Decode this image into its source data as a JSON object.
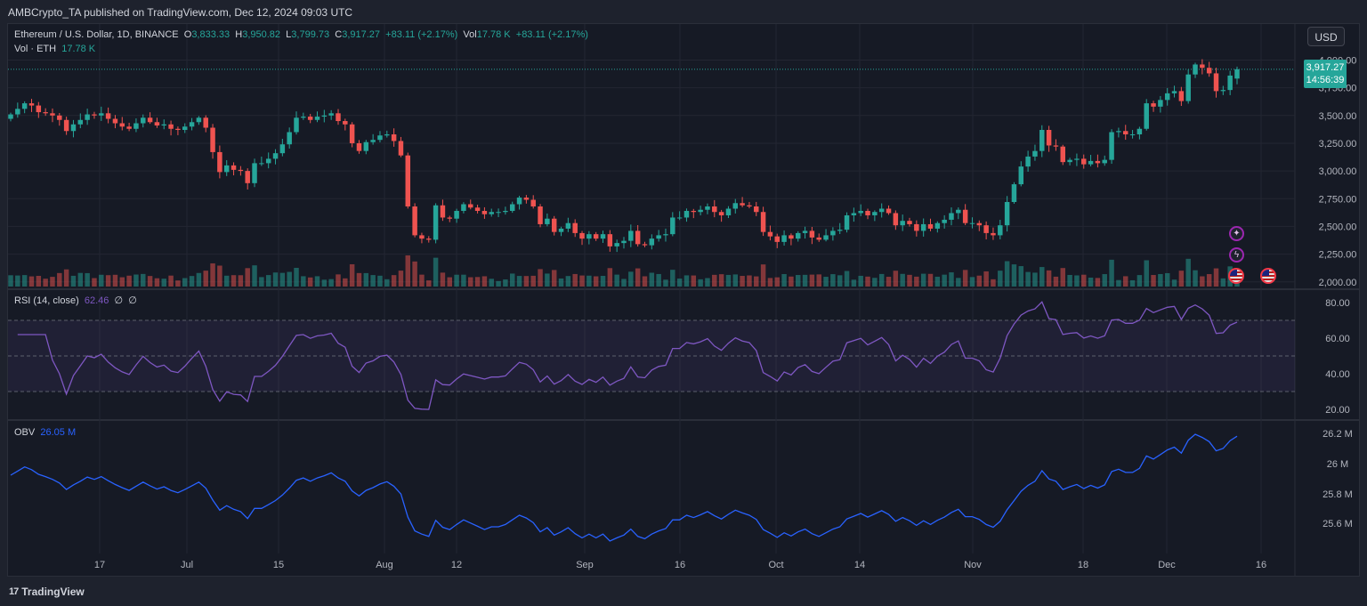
{
  "header": {
    "published": "AMBCrypto_TA published on TradingView.com, Dec 12, 2024 09:03 UTC"
  },
  "legend": {
    "symbol": "Ethereum / U.S. Dollar, 1D, BINANCE",
    "open_label": "O",
    "open": "3,833.33",
    "high_label": "H",
    "high": "3,950.82",
    "low_label": "L",
    "low": "3,799.73",
    "close_label": "C",
    "close": "3,917.27",
    "change": "+83.11 (+2.17%)",
    "vol_label": "Vol",
    "vol": "17.78 K",
    "vol_change": "+83.11 (+2.17%)",
    "vol_sub_label": "Vol · ETH",
    "vol_sub_value": "17.78 K",
    "rsi_label": "RSI (14, close)",
    "rsi_value": "62.46",
    "rsi_extra1": "∅",
    "rsi_extra2": "∅",
    "obv_label": "OBV",
    "obv_value": "26.05 M"
  },
  "currency_button": "USD",
  "price_badge": {
    "price": "3,917.27",
    "countdown": "14:56:39"
  },
  "footer": {
    "brand": "TradingView",
    "brand_mark": "17"
  },
  "colors": {
    "up": "#26a69a",
    "down": "#ef5350",
    "rsi": "#7e57c2",
    "obv": "#2962ff",
    "background": "#161a25",
    "grid": "#232632",
    "text": "#b2b5be"
  },
  "icons": [
    "event-star-icon",
    "event-bolt-icon",
    "us-flag-icon",
    "us-flag-icon"
  ],
  "chart_data": {
    "type": "candlestick",
    "x_tick_labels": [
      "17",
      "Jul",
      "15",
      "Aug",
      "12",
      "Sep",
      "16",
      "Oct",
      "14",
      "Nov",
      "18",
      "Dec",
      "16"
    ],
    "price_axis": {
      "ticks": [
        2000,
        2250,
        2500,
        2750,
        3000,
        3250,
        3500,
        3750,
        4000
      ],
      "tick_labels": [
        "2,000.00",
        "2,250.00",
        "2,500.00",
        "2,750.00",
        "3,000.00",
        "3,250.00",
        "3,500.00",
        "3,750.00",
        "4,000.00"
      ],
      "ylim": [
        1990,
        4060
      ]
    },
    "rsi_axis": {
      "ticks": [
        20,
        40,
        60,
        80
      ],
      "tick_labels": [
        "20.00",
        "40.00",
        "60.00",
        "80.00"
      ],
      "band": [
        30,
        70
      ],
      "mid": 50
    },
    "obv_axis": {
      "ticks": [
        25.6,
        25.8,
        26.0,
        26.2
      ],
      "tick_labels": [
        "25.6 M",
        "25.8 M",
        "26 M",
        "26.2 M"
      ]
    },
    "close": [
      3510,
      3560,
      3610,
      3590,
      3530,
      3520,
      3500,
      3460,
      3360,
      3420,
      3460,
      3510,
      3500,
      3520,
      3470,
      3430,
      3400,
      3380,
      3430,
      3480,
      3440,
      3410,
      3420,
      3380,
      3370,
      3400,
      3440,
      3480,
      3390,
      3170,
      2990,
      3050,
      3010,
      3000,
      2890,
      3070,
      3070,
      3110,
      3160,
      3240,
      3350,
      3480,
      3490,
      3460,
      3490,
      3500,
      3520,
      3450,
      3420,
      3250,
      3180,
      3260,
      3280,
      3320,
      3330,
      3270,
      3140,
      2680,
      2420,
      2390,
      2380,
      2690,
      2580,
      2570,
      2640,
      2700,
      2670,
      2640,
      2610,
      2630,
      2630,
      2640,
      2700,
      2760,
      2740,
      2680,
      2520,
      2570,
      2450,
      2480,
      2530,
      2440,
      2390,
      2430,
      2390,
      2430,
      2320,
      2350,
      2370,
      2460,
      2340,
      2330,
      2390,
      2420,
      2430,
      2580,
      2580,
      2640,
      2630,
      2650,
      2680,
      2630,
      2600,
      2660,
      2710,
      2690,
      2680,
      2630,
      2450,
      2410,
      2360,
      2420,
      2390,
      2440,
      2460,
      2400,
      2380,
      2420,
      2460,
      2470,
      2600,
      2620,
      2640,
      2600,
      2630,
      2660,
      2620,
      2510,
      2550,
      2520,
      2460,
      2520,
      2480,
      2530,
      2560,
      2620,
      2650,
      2530,
      2530,
      2510,
      2440,
      2420,
      2510,
      2720,
      2880,
      3040,
      3130,
      3180,
      3370,
      3230,
      3220,
      3080,
      3100,
      3110,
      3060,
      3090,
      3070,
      3100,
      3350,
      3360,
      3330,
      3330,
      3380,
      3610,
      3580,
      3640,
      3700,
      3720,
      3630,
      3870,
      3960,
      3930,
      3880,
      3720,
      3730,
      3860,
      3917
    ]
  }
}
